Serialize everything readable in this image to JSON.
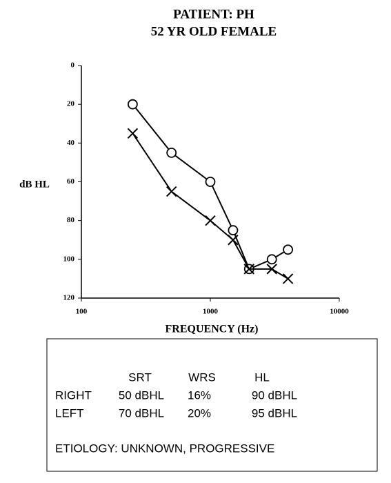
{
  "chart_data": {
    "type": "line",
    "title": [
      "PATIENT:  PH",
      "52 YR OLD FEMALE"
    ],
    "x_label": "FREQUENCY (Hz)",
    "y_label": "dB HL",
    "xscale": "log",
    "xlim": [
      100,
      10000
    ],
    "xticks": [
      100,
      1000,
      10000
    ],
    "ylim": [
      0,
      120
    ],
    "yticks": [
      0,
      20,
      40,
      60,
      80,
      100,
      120
    ],
    "y_inverted": true,
    "x": [
      250,
      500,
      1000,
      1500,
      2000,
      3000,
      4000
    ],
    "series": [
      {
        "marker": "circle",
        "color": "#000000",
        "values": [
          20,
          45,
          60,
          85,
          105,
          100,
          95
        ]
      },
      {
        "marker": "x",
        "color": "#000000",
        "values": [
          35,
          65,
          80,
          90,
          105,
          105,
          110
        ]
      }
    ]
  },
  "table": {
    "columns": [
      "SRT",
      "WRS",
      "HL"
    ],
    "rows": [
      [
        "RIGHT",
        "50 dBHL",
        "16%",
        "90 dBHL"
      ],
      [
        "LEFT",
        "70 dBHL",
        "20%",
        "95 dBHL"
      ]
    ],
    "footnote": "ETIOLOGY: UNKNOWN, PROGRESSIVE"
  }
}
